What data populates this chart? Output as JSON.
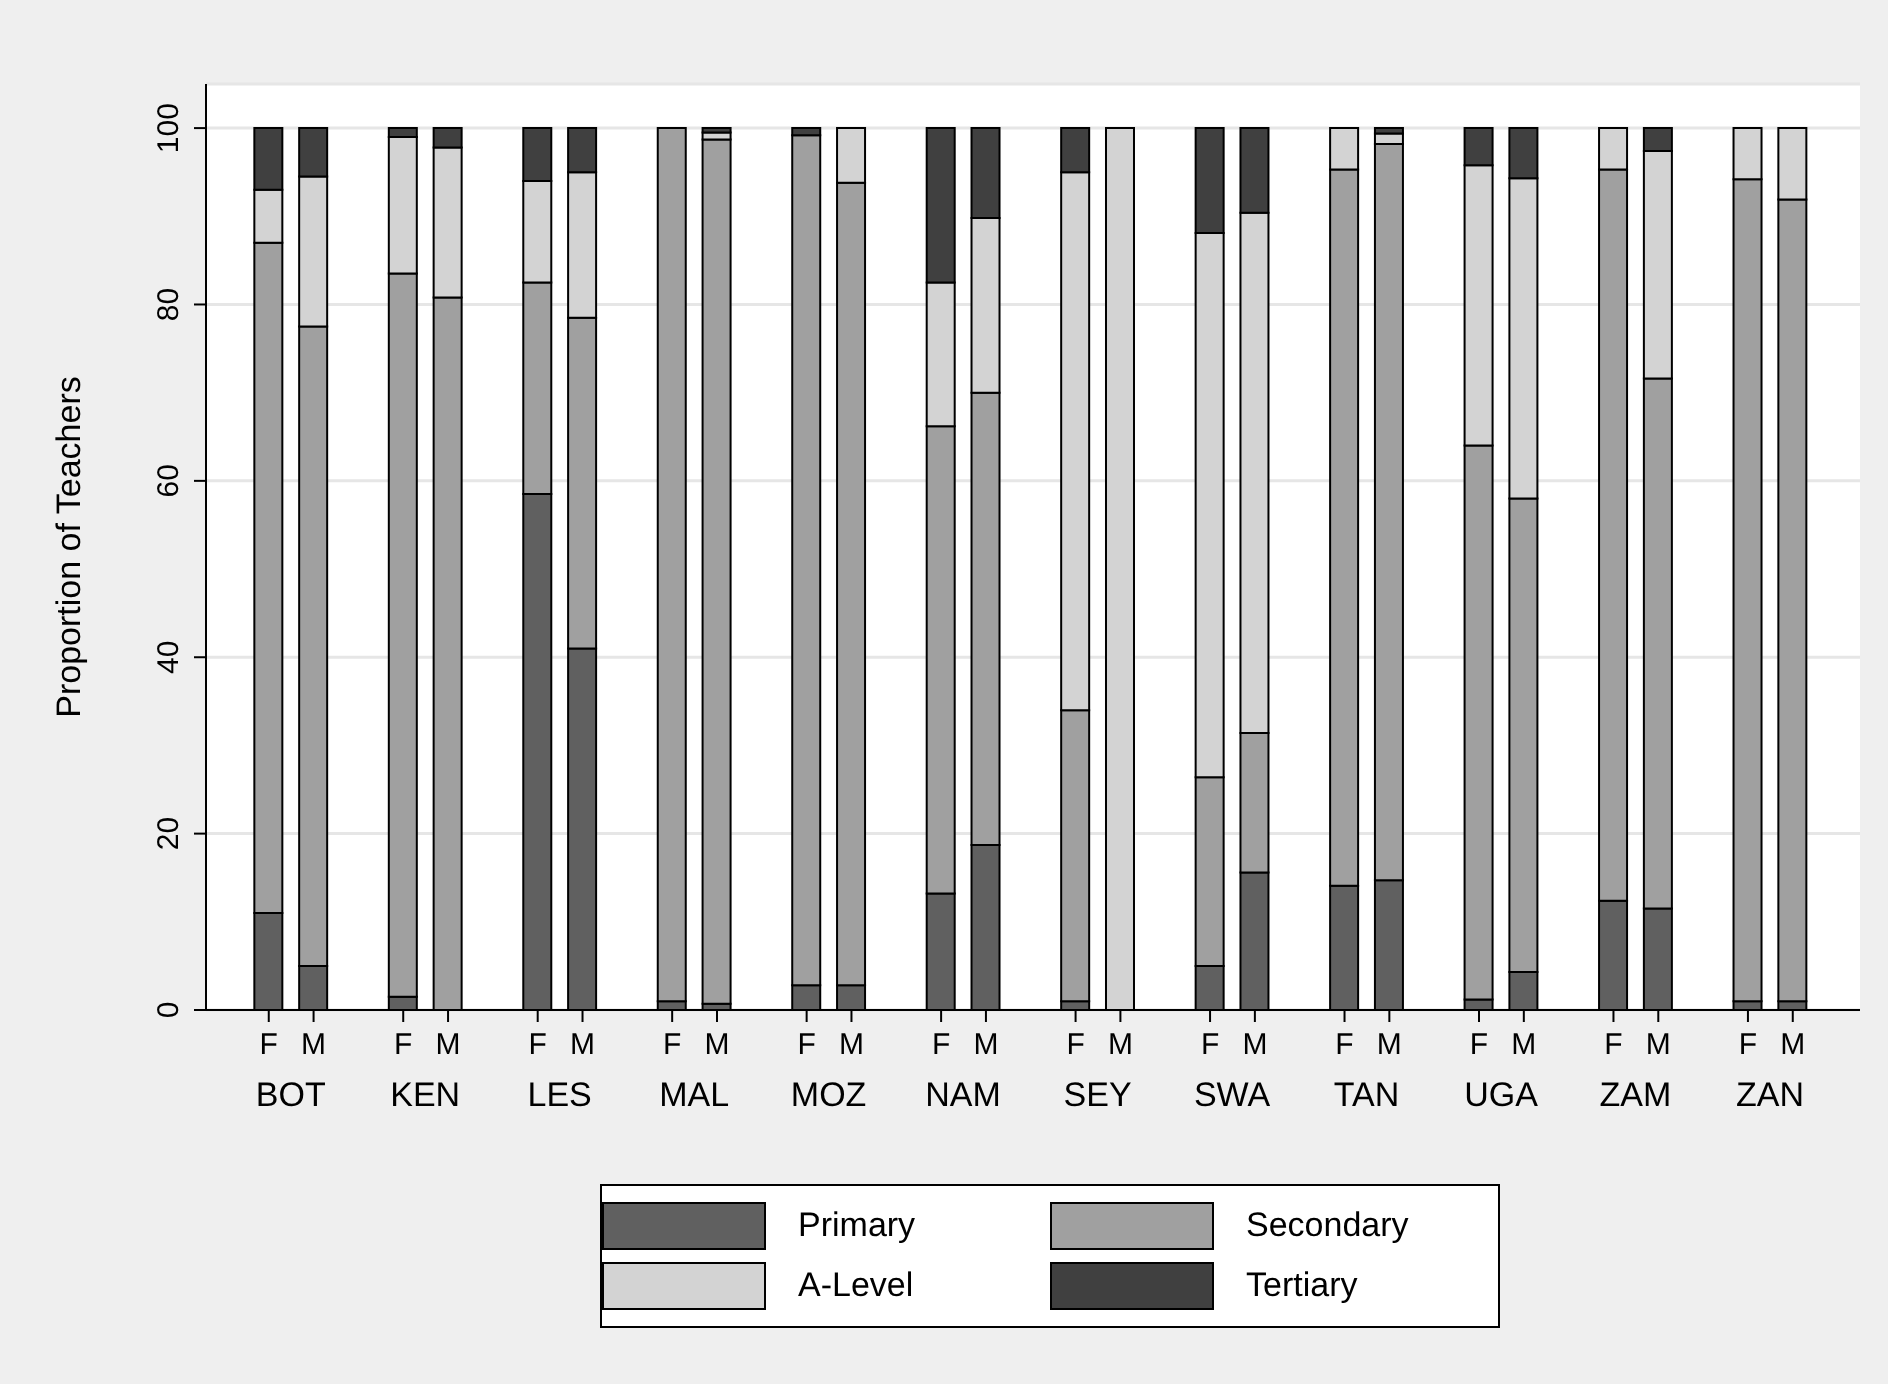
{
  "chart_data": {
    "type": "bar",
    "stacked": true,
    "ylabel": "Proportion of Teachers",
    "categories": [
      "F",
      "M",
      "F",
      "M",
      "F",
      "M",
      "F",
      "M",
      "F",
      "M",
      "F",
      "M",
      "F",
      "M",
      "F",
      "M",
      "F",
      "M",
      "F",
      "M",
      "F",
      "M",
      "F",
      "M"
    ],
    "annotations": [
      "BOT",
      "KEN",
      "LES",
      "MAL",
      "MOZ",
      "NAM",
      "SEY",
      "SWA",
      "TAN",
      "UGA",
      "ZAM",
      "ZAN"
    ],
    "series": [
      {
        "name": "Primary",
        "color": "#606060",
        "values": [
          11,
          5,
          1.5,
          null,
          58.5,
          41,
          1,
          0.7,
          2.8,
          2.8,
          13.2,
          18.7,
          1,
          0,
          5,
          15.6,
          14.1,
          14.7,
          1.2,
          4.3,
          12.4,
          11.5,
          1,
          1
        ]
      },
      {
        "name": "Secondary",
        "color": "#a0a0a0",
        "values": [
          76,
          72.5,
          82,
          80.8,
          24,
          37.5,
          99,
          98,
          96.4,
          91,
          53,
          51.3,
          33,
          0,
          21.4,
          15.8,
          81.2,
          83.5,
          62.8,
          53.7,
          82.9,
          60.1,
          93.2,
          90.9
        ]
      },
      {
        "name": "A-Level",
        "color": "#d3d3d3",
        "values": [
          6,
          17,
          15.5,
          17,
          11.5,
          16.5,
          0,
          0.8,
          0,
          6.2,
          16.3,
          19.8,
          61,
          100,
          61.7,
          59,
          4.7,
          1.2,
          31.8,
          36.3,
          4.7,
          25.8,
          5.8,
          8.1
        ]
      },
      {
        "name": "Tertiary",
        "color": "#404040",
        "values": [
          7,
          5.5,
          1,
          2.2,
          6,
          5,
          0,
          0.5,
          0.8,
          0,
          17.5,
          10.2,
          5,
          0,
          11.9,
          9.6,
          0,
          0.6,
          4.2,
          5.7,
          0,
          2.6,
          0,
          0
        ]
      }
    ],
    "ylim": [
      0,
      105
    ],
    "yticks": [
      0,
      20,
      40,
      60,
      80,
      100
    ],
    "grid": "y",
    "legend": "bottom"
  }
}
